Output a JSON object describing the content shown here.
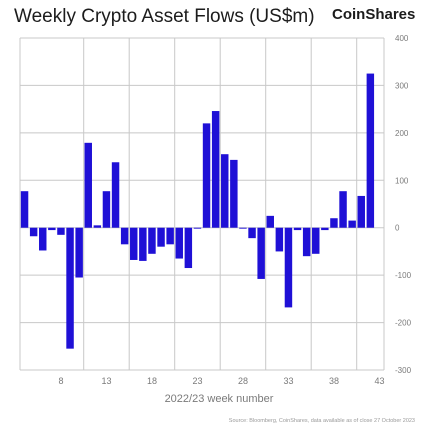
{
  "header": {
    "title": "Weekly Crypto Asset Flows (US$m)",
    "brand": "CoinShares"
  },
  "footer": {
    "source": "Source: Bloomberg, CoinShares, data available as of close 27 October 2023"
  },
  "colors": {
    "bar": "#1f10d6",
    "grid": "#c8c8c8",
    "axis_text": "#7a7a7a"
  },
  "chart_data": {
    "type": "bar",
    "title": "Weekly Crypto Asset Flows (US$m)",
    "xlabel": "2022/23 week number",
    "ylabel": "",
    "x_ticks": [
      "8",
      "13",
      "18",
      "23",
      "28",
      "33",
      "38",
      "43"
    ],
    "y_ticks": [
      "400",
      "300",
      "200",
      "100",
      "0",
      "-100",
      "-200",
      "-300"
    ],
    "ylim": [
      -300,
      400
    ],
    "y_axis_side": "right",
    "grid": true,
    "categories": [
      4,
      5,
      6,
      7,
      8,
      9,
      10,
      11,
      12,
      13,
      14,
      15,
      16,
      17,
      18,
      19,
      20,
      21,
      22,
      23,
      24,
      25,
      26,
      27,
      28,
      29,
      30,
      31,
      32,
      33,
      34,
      35,
      36,
      37,
      38,
      39,
      40,
      41,
      42,
      43
    ],
    "values": [
      77,
      -18,
      -48,
      -5,
      -15,
      -255,
      -105,
      179,
      5,
      77,
      138,
      -35,
      -68,
      -70,
      -55,
      -40,
      -35,
      -65,
      -85,
      -2,
      220,
      246,
      155,
      143,
      -2,
      -22,
      -108,
      25,
      -50,
      -168,
      -5,
      -60,
      -55,
      -5,
      20,
      77,
      15,
      67,
      325,
      0
    ]
  }
}
